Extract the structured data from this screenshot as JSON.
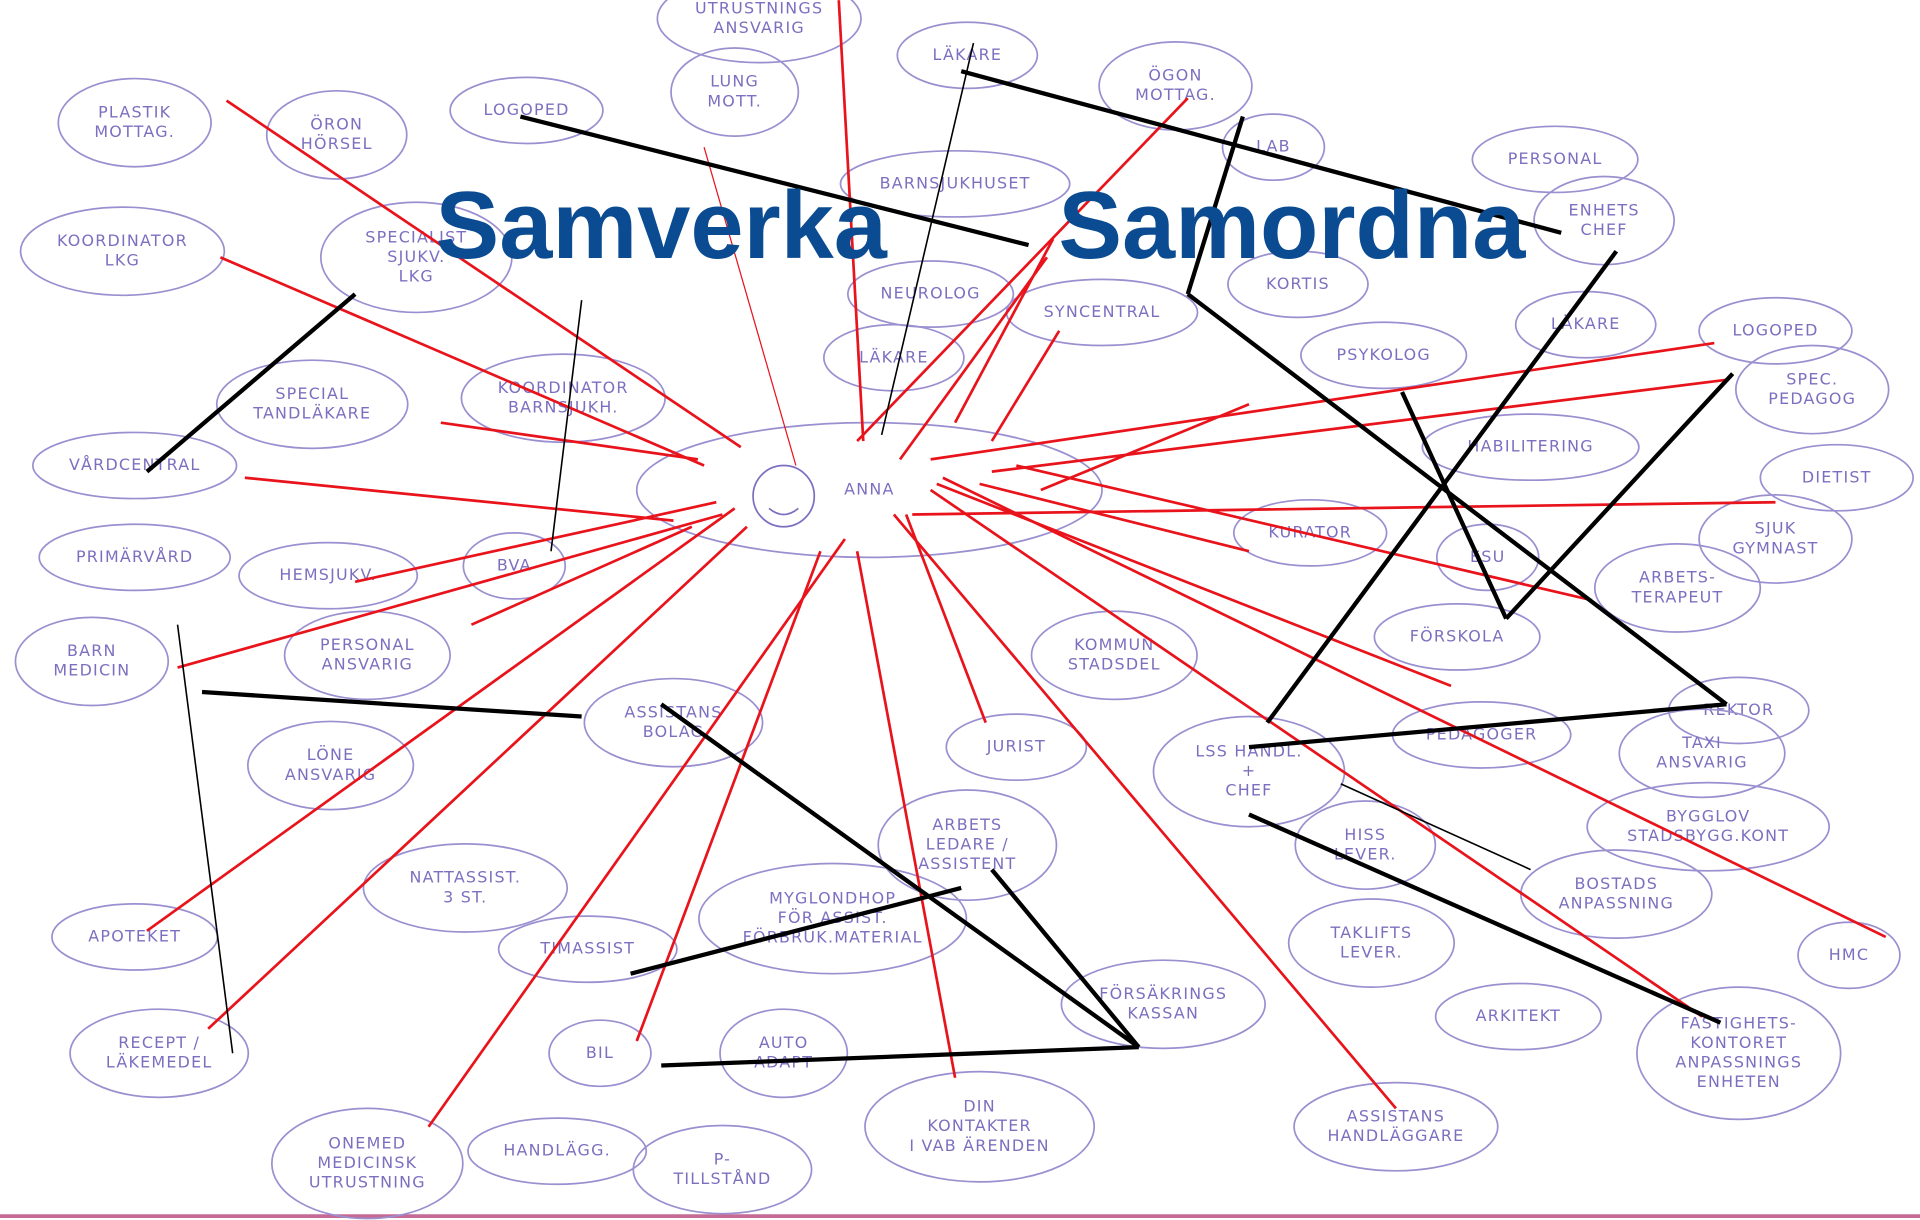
{
  "title": {
    "left": "Samverka",
    "right": "Samordna"
  },
  "nodes": [
    {
      "lines": [
        "UTRUSTNINGS",
        "ANSVARIG"
      ]
    },
    {
      "lines": [
        "LUNG",
        "MOTT."
      ]
    },
    {
      "lines": [
        "LÄKARE"
      ]
    },
    {
      "lines": [
        "ÖGON",
        "MOTTAG."
      ]
    },
    {
      "lines": [
        "PLASTIK",
        "MOTTAG."
      ]
    },
    {
      "lines": [
        "ÖRON",
        "HÖRSEL"
      ]
    },
    {
      "lines": [
        "LOGOPED"
      ]
    },
    {
      "lines": [
        "LAB"
      ]
    },
    {
      "lines": [
        "PERSONAL"
      ]
    },
    {
      "lines": [
        "ENHETS",
        "CHEF"
      ]
    },
    {
      "lines": [
        "BARNSJUKHUSET"
      ]
    },
    {
      "lines": [
        "KOORDINATOR",
        "LKG"
      ]
    },
    {
      "lines": [
        "SPECIALIST",
        "SJUKV.",
        "LKG"
      ]
    },
    {
      "lines": [
        "NEUROLOG"
      ]
    },
    {
      "lines": [
        "SYNCENTRAL"
      ]
    },
    {
      "lines": [
        "KORTIS"
      ]
    },
    {
      "lines": [
        "LÄKARE"
      ]
    },
    {
      "lines": [
        "PSYKOLOG"
      ]
    },
    {
      "lines": [
        "LÄKARE"
      ]
    },
    {
      "lines": [
        "LOGOPED"
      ]
    },
    {
      "lines": [
        "SPECIAL",
        "TANDLÄKARE"
      ]
    },
    {
      "lines": [
        "KOORDINATOR",
        "BARNSJUKH."
      ]
    },
    {
      "lines": [
        "SPEC.",
        "PEDAGOG"
      ]
    },
    {
      "lines": [
        "HABILITERING"
      ]
    },
    {
      "lines": [
        "VÅRDCENTRAL"
      ]
    },
    {
      "lines": [
        "ANNA"
      ]
    },
    {
      "lines": [
        "DIETIST"
      ]
    },
    {
      "lines": [
        "PRIMÄRVÅRD"
      ]
    },
    {
      "lines": [
        "HEMSJUKV."
      ]
    },
    {
      "lines": [
        "BVA"
      ]
    },
    {
      "lines": [
        "KURATOR"
      ]
    },
    {
      "lines": [
        "SJUK",
        "GYMNAST"
      ]
    },
    {
      "lines": [
        "ESU"
      ]
    },
    {
      "lines": [
        "ARBETS-",
        "TERAPEUT"
      ]
    },
    {
      "lines": [
        "BARN",
        "MEDICIN"
      ]
    },
    {
      "lines": [
        "PERSONAL",
        "ANSVARIG"
      ]
    },
    {
      "lines": [
        "KOMMUN",
        "STADSDEL"
      ]
    },
    {
      "lines": [
        "FÖRSKOLA"
      ]
    },
    {
      "lines": [
        "ASSISTANS",
        "BOLAG"
      ]
    },
    {
      "lines": [
        "REKTOR"
      ]
    },
    {
      "lines": [
        "PEDAGOGER"
      ]
    },
    {
      "lines": [
        "LÖNE",
        "ANSVARIG"
      ]
    },
    {
      "lines": [
        "JURIST"
      ]
    },
    {
      "lines": [
        "LSS HANDL.",
        "+",
        "CHEF"
      ]
    },
    {
      "lines": [
        "TAXI",
        "ANSVARIG"
      ]
    },
    {
      "lines": [
        "BYGGLOV",
        "STADSBYGG.KONT"
      ]
    },
    {
      "lines": [
        "ARBETS",
        "LEDARE /",
        "ASSISTENT"
      ]
    },
    {
      "lines": [
        "HISS",
        "LEVER."
      ]
    },
    {
      "lines": [
        "NATTASSIST.",
        "3 ST."
      ]
    },
    {
      "lines": [
        "MYGLONDHOP",
        "FÖR ASSIST.",
        "FÖRBRUK.MATERIAL"
      ]
    },
    {
      "lines": [
        "BOSTADS",
        "ANPASSNING"
      ]
    },
    {
      "lines": [
        "APOTEKET"
      ]
    },
    {
      "lines": [
        "TIMASSIST"
      ]
    },
    {
      "lines": [
        "TAKLIFTS",
        "LEVER."
      ]
    },
    {
      "lines": [
        "HMC"
      ]
    },
    {
      "lines": [
        "FÖRSÄKRINGS",
        "KASSAN"
      ]
    },
    {
      "lines": [
        "ARKITEKT"
      ]
    },
    {
      "lines": [
        "FASTIGHETS-",
        "KONTORET",
        "ANPASSNINGS",
        "ENHETEN"
      ]
    },
    {
      "lines": [
        "RECEPT /",
        "LÄKEMEDEL"
      ]
    },
    {
      "lines": [
        "BIL"
      ]
    },
    {
      "lines": [
        "AUTO",
        "ADAPT"
      ]
    },
    {
      "lines": [
        "DIN",
        "KONTAKTER",
        "I VAB ÄRENDEN"
      ]
    },
    {
      "lines": [
        "ASSISTANS",
        "HANDLÄGGARE"
      ]
    },
    {
      "lines": [
        "ONEMED",
        "MEDICINSK",
        "UTRUSTNING"
      ]
    },
    {
      "lines": [
        "HANDLÄGG."
      ]
    },
    {
      "lines": [
        "P-",
        "TILLSTÅND"
      ]
    }
  ]
}
